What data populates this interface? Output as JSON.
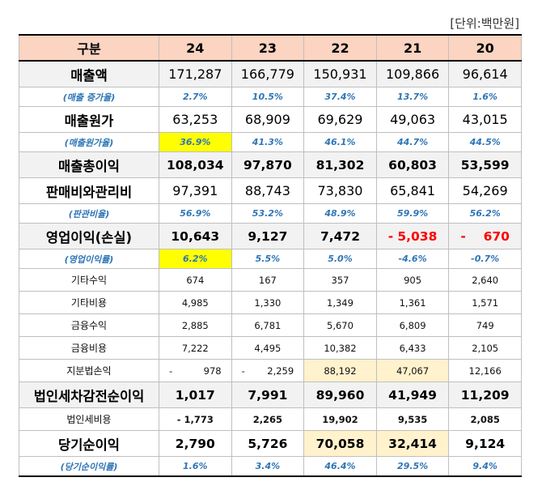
{
  "unit_label": "[단위:백만원]",
  "header": {
    "label": "구분",
    "years": [
      "24",
      "23",
      "22",
      "21",
      "20"
    ]
  },
  "rows": {
    "revenue": {
      "label": "매출액",
      "values": [
        "171,287",
        "166,779",
        "150,931",
        "109,866",
        "96,614"
      ]
    },
    "revenue_growth": {
      "label": "(매출 증가율)",
      "values": [
        "2.7%",
        "10.5%",
        "37.4%",
        "13.7%",
        "1.6%"
      ]
    },
    "cogs": {
      "label": "매출원가",
      "values": [
        "63,253",
        "68,909",
        "69,629",
        "49,063",
        "43,015"
      ]
    },
    "cogs_ratio": {
      "label": "(매출원가율)",
      "values": [
        "36.9%",
        "41.3%",
        "46.1%",
        "44.7%",
        "44.5%"
      ]
    },
    "gross_profit": {
      "label": "매출총이익",
      "values": [
        "108,034",
        "97,870",
        "81,302",
        "60,803",
        "53,599"
      ]
    },
    "sga": {
      "label": "판매비와관리비",
      "values": [
        "97,391",
        "88,743",
        "73,830",
        "65,841",
        "54,269"
      ]
    },
    "sga_ratio": {
      "label": "(판관비율)",
      "values": [
        "56.9%",
        "53.2%",
        "48.9%",
        "59.9%",
        "56.2%"
      ]
    },
    "operating_income": {
      "label": "영업이익(손실)",
      "values": [
        "10,643",
        "9,127",
        "7,472"
      ],
      "neg": [
        {
          "sign": "-",
          "value": "5,038"
        },
        {
          "sign": "-",
          "value": "670"
        }
      ]
    },
    "operating_margin": {
      "label": "(영업이익률)",
      "values": [
        "6.2%",
        "5.5%",
        "5.0%",
        "-4.6%",
        "-0.7%"
      ]
    },
    "other_income": {
      "label": "기타수익",
      "values": [
        "674",
        "167",
        "357",
        "905",
        "2,640"
      ]
    },
    "other_expense": {
      "label": "기타비용",
      "values": [
        "4,985",
        "1,330",
        "1,349",
        "1,361",
        "1,571"
      ]
    },
    "finance_income": {
      "label": "금융수익",
      "values": [
        "2,885",
        "6,781",
        "5,670",
        "6,809",
        "749"
      ]
    },
    "finance_cost": {
      "label": "금융비용",
      "values": [
        "7,222",
        "4,495",
        "10,382",
        "6,433",
        "2,105"
      ]
    },
    "equity_method": {
      "label": "지분법손익",
      "neg": [
        {
          "sign": "-",
          "value": "978"
        },
        {
          "sign": "-",
          "value": "2,259"
        }
      ],
      "values": [
        "88,192",
        "47,067",
        "12,166"
      ]
    },
    "pretax_income": {
      "label": "법인세차감전순이익",
      "values": [
        "1,017",
        "7,991",
        "89,960",
        "41,949",
        "11,209"
      ]
    },
    "income_tax": {
      "label": "법인세비용",
      "values": [
        "- 1,773",
        "2,265",
        "19,902",
        "9,535",
        "2,085"
      ]
    },
    "net_income": {
      "label": "당기순이익",
      "values": [
        "2,790",
        "5,726",
        "70,058",
        "32,414",
        "9,124"
      ]
    },
    "net_margin": {
      "label": "(당기순이익률)",
      "values": [
        "1.6%",
        "3.4%",
        "46.4%",
        "29.5%",
        "9.4%"
      ]
    }
  }
}
